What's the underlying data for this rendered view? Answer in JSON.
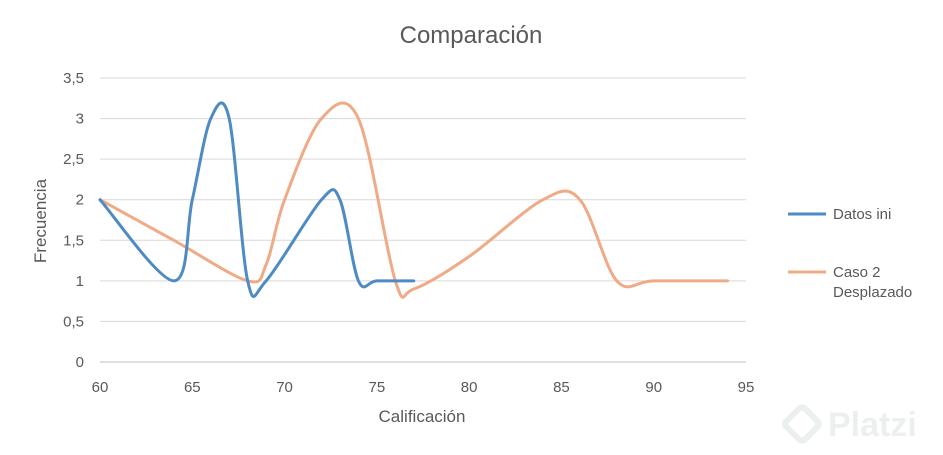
{
  "chart_data": {
    "type": "line",
    "title": "Comparación",
    "xlabel": "Calificación",
    "ylabel": "Frecuencia",
    "xlim": [
      60,
      95
    ],
    "ylim": [
      0,
      3.5
    ],
    "x_ticks": [
      "60",
      "65",
      "70",
      "75",
      "80",
      "85",
      "90",
      "95"
    ],
    "x_tick_values": [
      60,
      65,
      70,
      75,
      80,
      85,
      90,
      95
    ],
    "y_ticks": [
      "0",
      "0,5",
      "1",
      "1,5",
      "2",
      "2,5",
      "3",
      "3,5"
    ],
    "y_tick_values": [
      0,
      0.5,
      1,
      1.5,
      2,
      2.5,
      3,
      3.5
    ],
    "grid": true,
    "legend_position": "right",
    "series": [
      {
        "name": "Datos ini",
        "color": "#4E8BC4",
        "points": [
          [
            60,
            2
          ],
          [
            64,
            1
          ],
          [
            65,
            2
          ],
          [
            66,
            3
          ],
          [
            67,
            3
          ],
          [
            68,
            1
          ],
          [
            69,
            1
          ],
          [
            72,
            2
          ],
          [
            73,
            2
          ],
          [
            74,
            1
          ],
          [
            75,
            1
          ],
          [
            77,
            1
          ]
        ]
      },
      {
        "name": "Caso 2\nDesplazado",
        "legend_lines": [
          "Caso 2",
          "Desplazado"
        ],
        "color": "#F0AA86",
        "points": [
          [
            60,
            2
          ],
          [
            64,
            1.5
          ],
          [
            68,
            1
          ],
          [
            69,
            1.2
          ],
          [
            70,
            2
          ],
          [
            72,
            3
          ],
          [
            74,
            3
          ],
          [
            76,
            1
          ],
          [
            77,
            0.9
          ],
          [
            80,
            1.3
          ],
          [
            84,
            2
          ],
          [
            86,
            2
          ],
          [
            88,
            1
          ],
          [
            90,
            1
          ],
          [
            94,
            1
          ]
        ]
      }
    ]
  },
  "watermark": {
    "text": "Platzi",
    "color": "#c8d3cf"
  }
}
